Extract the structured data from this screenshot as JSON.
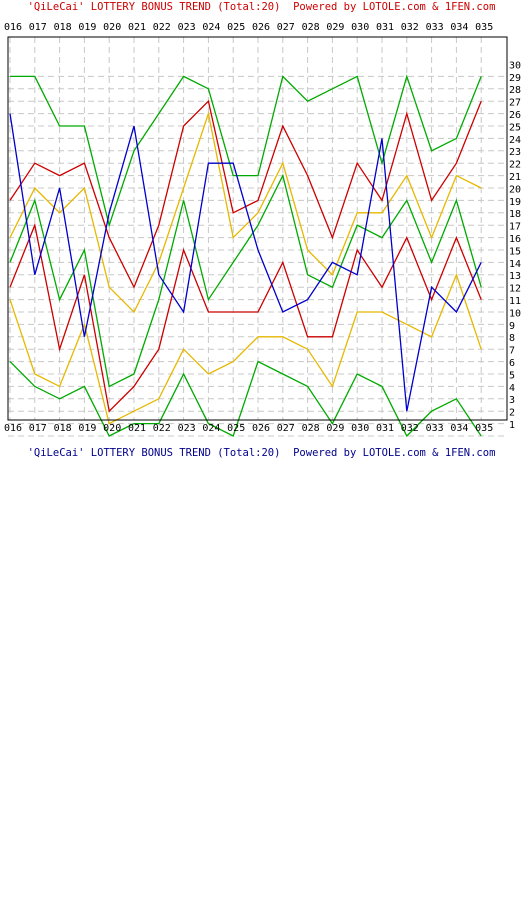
{
  "titles": {
    "top": "'QiLeCai' LOTTERY BONUS TREND (Total:20)  Powered by LOTOLE.com & 1FEN.com",
    "bottom": "'QiLeCai' LOTTERY BONUS TREND (Total:20)  Powered by LOTOLE.com & 1FEN.com"
  },
  "chart_data": {
    "type": "line",
    "title": "'QiLeCai' LOTTERY BONUS TREND (Total:20)",
    "categories": [
      "016",
      "017",
      "018",
      "019",
      "020",
      "021",
      "022",
      "023",
      "024",
      "025",
      "026",
      "027",
      "028",
      "029",
      "030",
      "031",
      "032",
      "033",
      "034",
      "035"
    ],
    "ylim": [
      1,
      30
    ],
    "y_ticks": [
      1,
      2,
      3,
      4,
      5,
      6,
      7,
      8,
      9,
      10,
      11,
      12,
      13,
      14,
      15,
      16,
      17,
      18,
      19,
      20,
      21,
      22,
      23,
      24,
      25,
      26,
      27,
      28,
      29,
      30
    ],
    "grid": true,
    "legend": "none",
    "series": [
      {
        "color": "#00aa00",
        "values": [
          7,
          5,
          4,
          5,
          1,
          2,
          2,
          6,
          2,
          1,
          7,
          6,
          5,
          2,
          6,
          5,
          1,
          3,
          4,
          1
        ]
      },
      {
        "color": "#e6b800",
        "values": [
          12,
          6,
          5,
          10,
          2,
          3,
          4,
          8,
          6,
          7,
          9,
          9,
          8,
          5,
          11,
          11,
          10,
          9,
          14,
          8
        ]
      },
      {
        "color": "#cc0000",
        "values": [
          13,
          18,
          8,
          14,
          3,
          5,
          8,
          16,
          11,
          11,
          11,
          15,
          9,
          9,
          16,
          13,
          17,
          12,
          17,
          12
        ]
      },
      {
        "color": "#00aa00",
        "values": [
          15,
          20,
          12,
          16,
          5,
          6,
          12,
          20,
          12,
          15,
          18,
          22,
          14,
          13,
          18,
          17,
          20,
          15,
          20,
          13
        ]
      },
      {
        "color": "#e6b800",
        "values": [
          17,
          21,
          19,
          21,
          13,
          11,
          15,
          21,
          27,
          17,
          19,
          23,
          16,
          14,
          19,
          19,
          22,
          17,
          22,
          21
        ]
      },
      {
        "color": "#cc0000",
        "values": [
          20,
          23,
          22,
          23,
          17,
          13,
          18,
          26,
          28,
          19,
          20,
          26,
          22,
          17,
          23,
          20,
          27,
          20,
          23,
          28
        ]
      },
      {
        "color": "#00aa00",
        "values": [
          30,
          30,
          26,
          26,
          18,
          24,
          27,
          30,
          29,
          22,
          22,
          30,
          28,
          29,
          30,
          23,
          30,
          24,
          25,
          30
        ]
      },
      {
        "color": "#0000cc",
        "values": [
          27,
          14,
          21,
          9,
          19,
          26,
          14,
          11,
          23,
          23,
          16,
          11,
          12,
          15,
          14,
          25,
          3,
          13,
          11,
          15
        ]
      }
    ]
  }
}
